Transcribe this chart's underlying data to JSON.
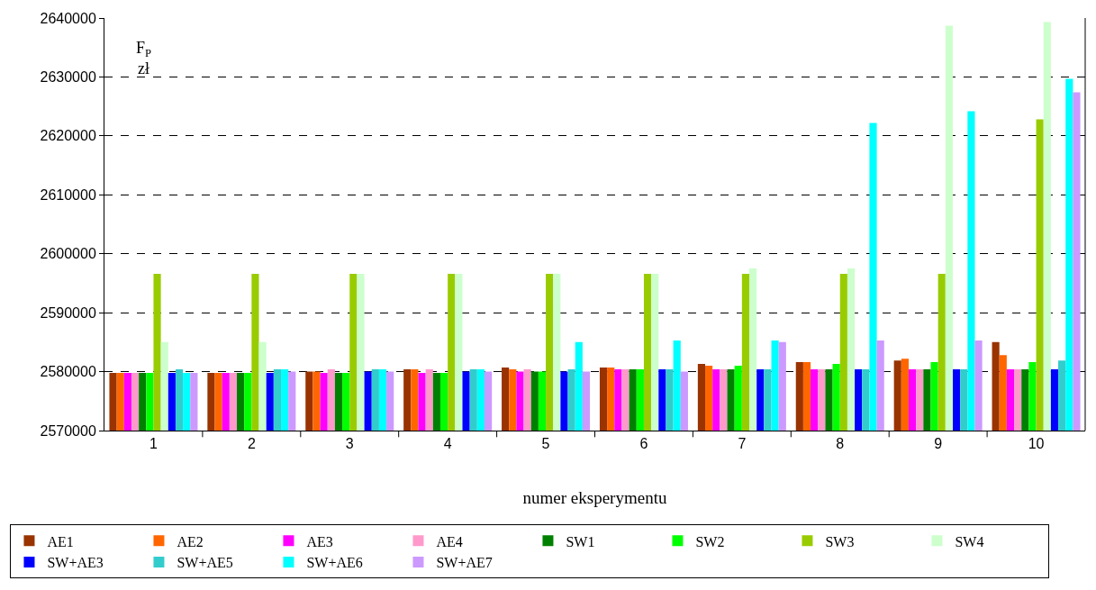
{
  "chart_data": {
    "type": "bar",
    "xlabel": "numer eksperymentu",
    "ylabel": "F$_{P}$ zł",
    "categories": [
      "1",
      "2",
      "3",
      "4",
      "5",
      "6",
      "7",
      "8",
      "9",
      "10"
    ],
    "series": [
      {
        "name": "AE1",
        "color": "#993300",
        "values": [
          2579800,
          2579800,
          2580000,
          2580400,
          2580700,
          2580700,
          2581300,
          2581600,
          2581900,
          2585000
        ]
      },
      {
        "name": "AE2",
        "color": "#ff6600",
        "values": [
          2579800,
          2579800,
          2580000,
          2580400,
          2580400,
          2580700,
          2581000,
          2581600,
          2582200,
          2582800
        ]
      },
      {
        "name": "AE3",
        "color": "#ff00ff",
        "values": [
          2579800,
          2579800,
          2579800,
          2579800,
          2580000,
          2580400,
          2580400,
          2580400,
          2580400,
          2580400
        ]
      },
      {
        "name": "AE4",
        "color": "#ff99cc",
        "values": [
          2579800,
          2579800,
          2580400,
          2580400,
          2580400,
          2580400,
          2580400,
          2580400,
          2580400,
          2580400
        ]
      },
      {
        "name": "SW1",
        "color": "#008000",
        "values": [
          2579800,
          2579800,
          2579800,
          2579800,
          2580000,
          2580400,
          2580400,
          2580400,
          2580400,
          2580400
        ]
      },
      {
        "name": "SW2",
        "color": "#00ff00",
        "values": [
          2579800,
          2579800,
          2579800,
          2579800,
          2580000,
          2580400,
          2581000,
          2581300,
          2581600,
          2581600
        ]
      },
      {
        "name": "SW3",
        "color": "#99cc00",
        "values": [
          2596600,
          2596600,
          2596600,
          2596600,
          2596600,
          2596600,
          2596600,
          2596600,
          2596600,
          2622800
        ]
      },
      {
        "name": "SW4",
        "color": "#ccffcc",
        "values": [
          2585000,
          2585000,
          2596600,
          2596600,
          2596600,
          2596600,
          2597500,
          2597500,
          2638700,
          2639300
        ]
      },
      {
        "name": "SW+AE3",
        "color": "#0000ff",
        "values": [
          2579800,
          2579800,
          2580000,
          2580000,
          2580000,
          2580400,
          2580400,
          2580400,
          2580400,
          2580400
        ]
      },
      {
        "name": "SW+AE5",
        "color": "#33cccc",
        "values": [
          2580400,
          2580400,
          2580400,
          2580400,
          2580400,
          2580400,
          2580400,
          2580400,
          2580400,
          2581900
        ]
      },
      {
        "name": "SW+AE6",
        "color": "#00ffff",
        "values": [
          2579800,
          2580400,
          2580400,
          2580400,
          2585000,
          2585300,
          2585300,
          2622200,
          2624200,
          2629700
        ]
      },
      {
        "name": "SW+AE7",
        "color": "#cc99ff",
        "values": [
          2579800,
          2580000,
          2580000,
          2580000,
          2580000,
          2580000,
          2585000,
          2585300,
          2585300,
          2627400
        ]
      }
    ],
    "ylim": [
      2570000,
      2640000
    ],
    "yticks": [
      2570000,
      2580000,
      2590000,
      2600000,
      2610000,
      2620000,
      2630000,
      2640000
    ],
    "grid": "y",
    "legend": "bottom"
  }
}
